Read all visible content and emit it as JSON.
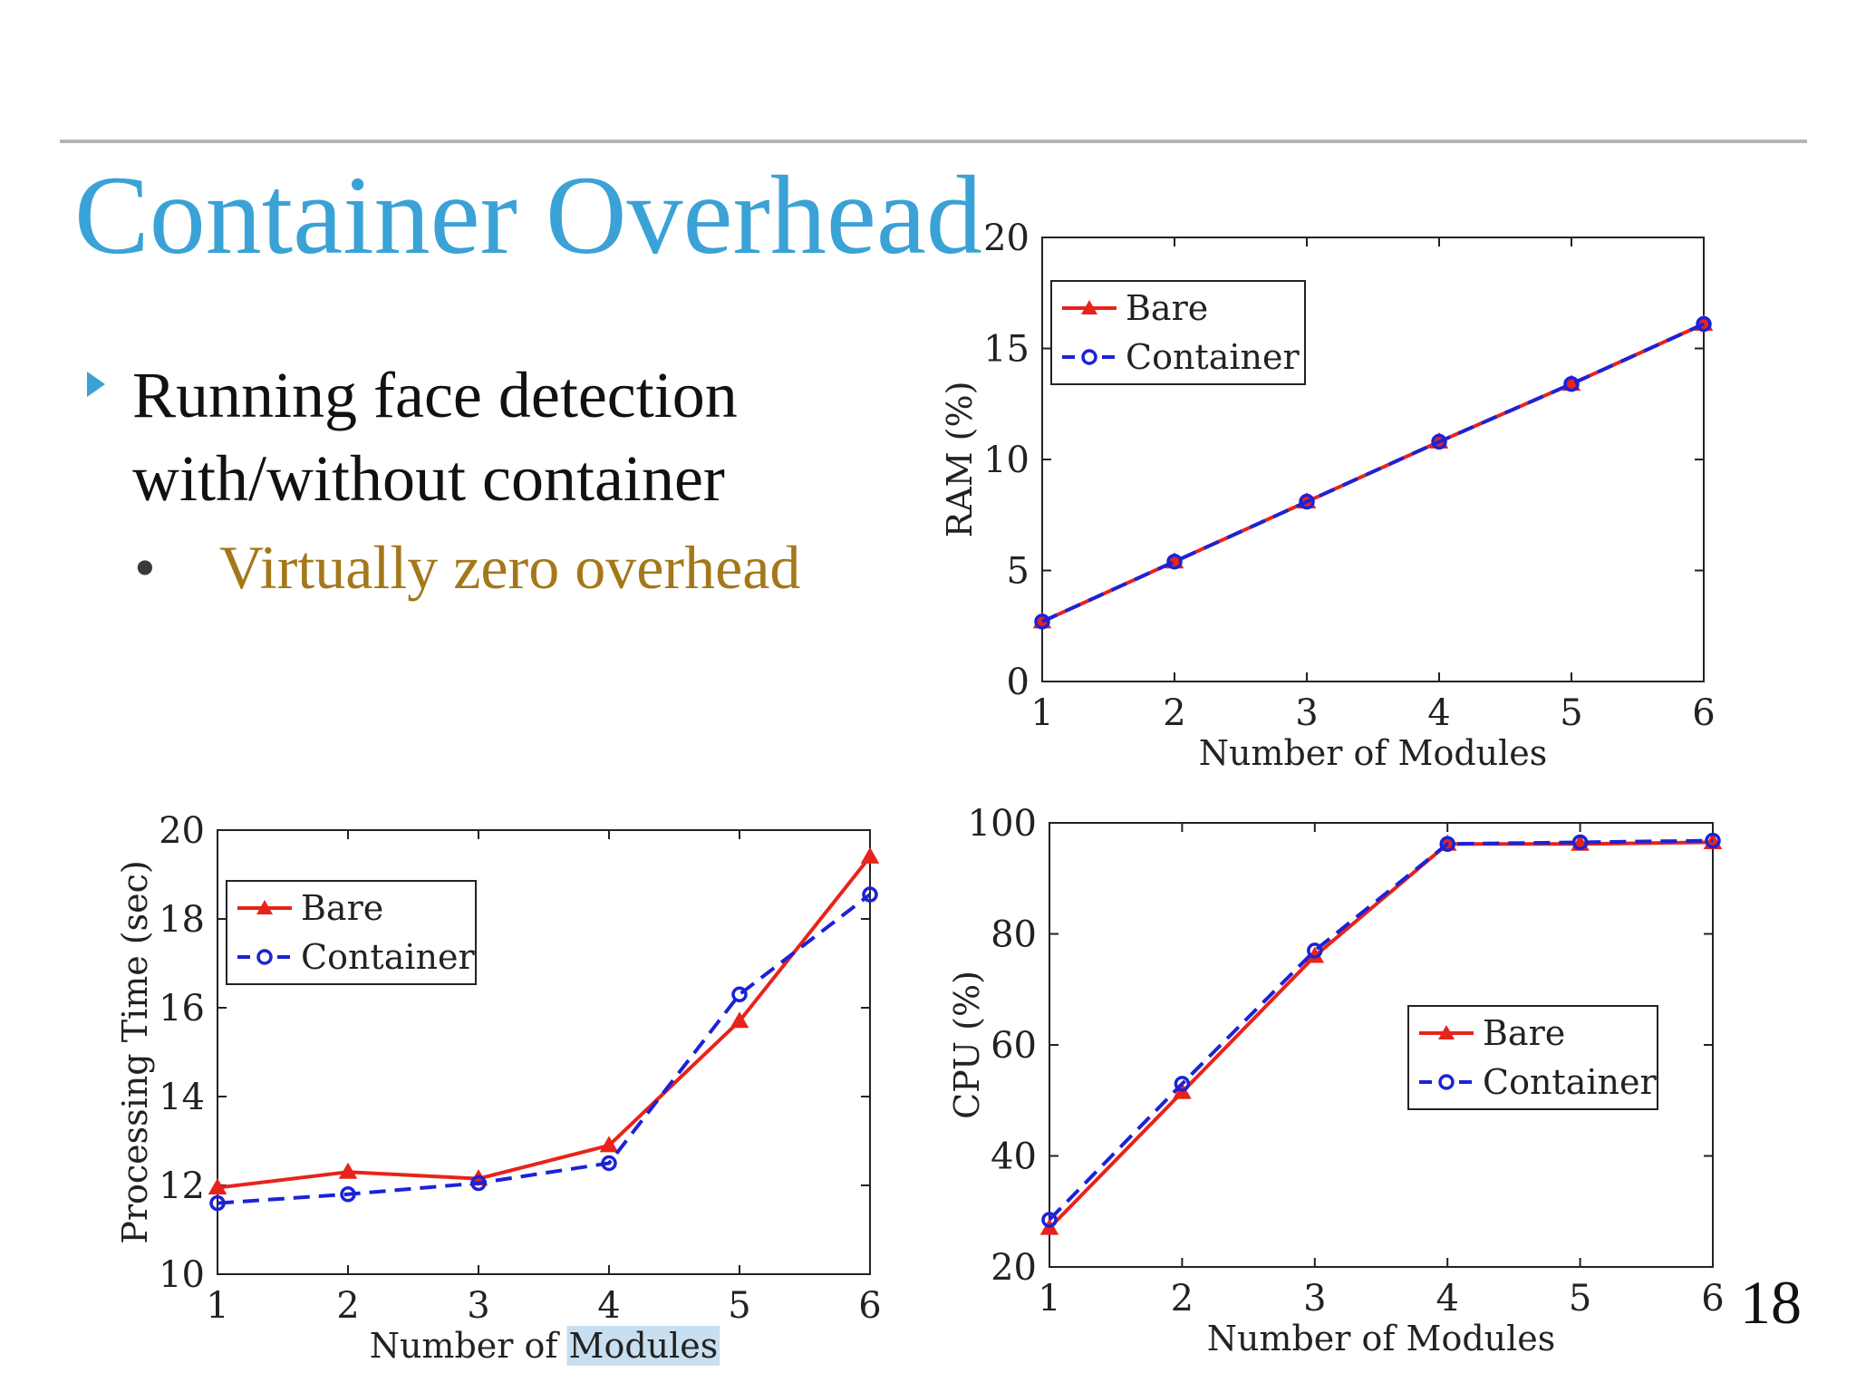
{
  "slide": {
    "title": "Container Overhead",
    "bullet_main": "Running face detection with/without container",
    "bullet_sub_marker": "•",
    "bullet_sub": "Virtually zero overhead",
    "page_number": "18"
  },
  "chart_data": [
    {
      "type": "line",
      "xlabel": "Number of Modules",
      "ylabel": "RAM (%)",
      "xlim": [
        1,
        6
      ],
      "ylim": [
        0,
        20
      ],
      "x_ticks": [
        1,
        2,
        3,
        4,
        5,
        6
      ],
      "y_ticks": [
        0,
        5,
        10,
        15,
        20
      ],
      "legend_position": "top-left",
      "x": [
        1,
        2,
        3,
        4,
        5,
        6
      ],
      "series": [
        {
          "name": "Bare",
          "values": [
            2.7,
            5.4,
            8.1,
            10.8,
            13.4,
            16.1
          ],
          "color": "#e8231b",
          "style": "solid",
          "marker": "triangle"
        },
        {
          "name": "Container",
          "values": [
            2.7,
            5.4,
            8.1,
            10.8,
            13.4,
            16.1
          ],
          "color": "#1c22d6",
          "style": "dashed",
          "marker": "circle"
        }
      ]
    },
    {
      "type": "line",
      "xlabel": "Number of Modules",
      "ylabel": "Processing Time (sec)",
      "xlim": [
        1,
        6
      ],
      "ylim": [
        10,
        20
      ],
      "x_ticks": [
        1,
        2,
        3,
        4,
        5,
        6
      ],
      "y_ticks": [
        10,
        12,
        14,
        16,
        18,
        20
      ],
      "legend_position": "top-left",
      "highlighted_word": "Modules",
      "x": [
        1,
        2,
        3,
        4,
        5,
        6
      ],
      "series": [
        {
          "name": "Bare",
          "values": [
            11.95,
            12.3,
            12.15,
            12.9,
            15.7,
            19.4
          ],
          "color": "#e8231b",
          "style": "solid",
          "marker": "triangle"
        },
        {
          "name": "Container",
          "values": [
            11.6,
            11.8,
            12.05,
            12.5,
            16.3,
            18.55
          ],
          "color": "#1c22d6",
          "style": "dashed",
          "marker": "circle"
        }
      ]
    },
    {
      "type": "line",
      "xlabel": "Number of Modules",
      "ylabel": "CPU (%)",
      "xlim": [
        1,
        6
      ],
      "ylim": [
        20,
        100
      ],
      "x_ticks": [
        1,
        2,
        3,
        4,
        5,
        6
      ],
      "y_ticks": [
        20,
        40,
        60,
        80,
        100
      ],
      "legend_position": "center-right",
      "x": [
        1,
        2,
        3,
        4,
        5,
        6
      ],
      "series": [
        {
          "name": "Bare",
          "values": [
            27,
            51.5,
            76,
            96.2,
            96.2,
            96.5
          ],
          "color": "#e8231b",
          "style": "solid",
          "marker": "triangle"
        },
        {
          "name": "Container",
          "values": [
            28.5,
            53,
            77,
            96.2,
            96.5,
            96.8
          ],
          "color": "#1c22d6",
          "style": "dashed",
          "marker": "circle"
        }
      ]
    }
  ]
}
